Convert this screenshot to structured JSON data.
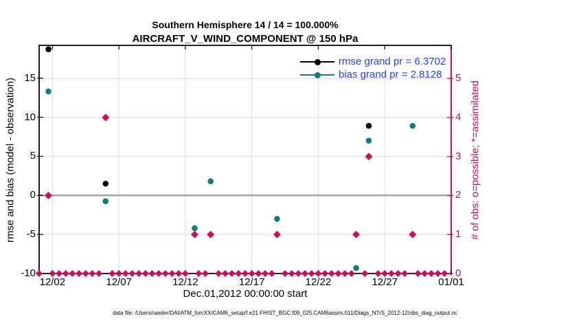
{
  "figure": {
    "title_line1": "Southern Hemisphere 14 / 14 = 100.000%",
    "title_line2": "AIRCRAFT_V_WIND_COMPONENT @ 150 hPa",
    "xlabel": "Dec.01,2012 00:00:00 start",
    "ylabel_left": "rmse and bias (model - observation)",
    "ylabel_right": "# of obs: o=possible; *=assimilated",
    "footer": "data file: /Users/raeder/DAI/ATM_forcXX/CAM6_setup/f.e21.FHIST_BGC.f09_025.CAM6assim.011/Diags_NTrS_2012-12/obs_diag_output.nc"
  },
  "legend": [
    {
      "label": "rmse grand pr = 6.3702",
      "series": "rmse",
      "color": "#000000"
    },
    {
      "label": "bias grand pr = 2.8128",
      "series": "bias",
      "color": "#107f7e"
    }
  ],
  "colors": {
    "black": "#000000",
    "teal": "#107f7e",
    "crimson": "#d10a5a",
    "legend_text": "#2042fa",
    "grid_gray": "#dcdcdc",
    "grid_pink": "#f5cbdc",
    "zero_line": "#a9a2a2"
  },
  "chart_data": {
    "type": "scatter",
    "title": "Southern Hemisphere 14 / 14 = 100.000% | AIRCRAFT_V_WIND_COMPONENT @ 150 hPa",
    "xlabel": "Dec.01,2012 00:00:00 start",
    "ylabel_left": "rmse and bias (model - observation)",
    "ylabel_right": "# of obs: o=possible; *=assimilated",
    "xlim": [
      1,
      32
    ],
    "ylim_left": [
      -10,
      19.2
    ],
    "ylim_right": [
      0,
      5.85
    ],
    "grid": true,
    "legend_position": "top-right-inside",
    "x_ticks": {
      "values": [
        2,
        7,
        12,
        17,
        22,
        27,
        32
      ],
      "labels": [
        "12/02",
        "12/07",
        "12/12",
        "12/17",
        "12/22",
        "12/27",
        "01/01"
      ]
    },
    "left_ticks": {
      "values": [
        15,
        10,
        5,
        0,
        -5,
        -10
      ],
      "labels": [
        "15",
        "10",
        "5",
        "0",
        "-5",
        "-10"
      ]
    },
    "right_ticks": {
      "values": [
        5,
        4,
        3,
        2,
        1,
        0
      ],
      "labels": [
        "5",
        "4",
        "3",
        "2",
        "1",
        "0"
      ]
    },
    "zero_line_left_value": 0,
    "series": [
      {
        "name": "rmse",
        "axis": "left",
        "marker": "circle",
        "color": "#000000",
        "points": [
          [
            1.7,
            18.7
          ],
          [
            6.0,
            1.5
          ],
          [
            25.8,
            8.9
          ]
        ]
      },
      {
        "name": "bias",
        "axis": "left",
        "marker": "circle",
        "color": "#107f7e",
        "points": [
          [
            1.7,
            13.3
          ],
          [
            6.0,
            -0.75
          ],
          [
            12.7,
            -4.2
          ],
          [
            13.9,
            1.8
          ],
          [
            18.9,
            -3.0
          ],
          [
            24.85,
            -9.3
          ],
          [
            25.8,
            7.0
          ],
          [
            29.1,
            8.9
          ]
        ]
      },
      {
        "name": "num_obs",
        "axis": "right",
        "marker": "diamond",
        "color": "#d10a5a",
        "points": [
          [
            1.7,
            2
          ],
          [
            6.0,
            4
          ],
          [
            12.7,
            1
          ],
          [
            13.9,
            1
          ],
          [
            18.9,
            1
          ],
          [
            24.85,
            1
          ],
          [
            25.8,
            3
          ],
          [
            29.1,
            1
          ]
        ]
      }
    ],
    "obs_zero_row": {
      "start_day": 1.0,
      "end_day": 31.5,
      "step": 0.5,
      "value": 0,
      "skip_near_elevated": 0.26
    }
  }
}
